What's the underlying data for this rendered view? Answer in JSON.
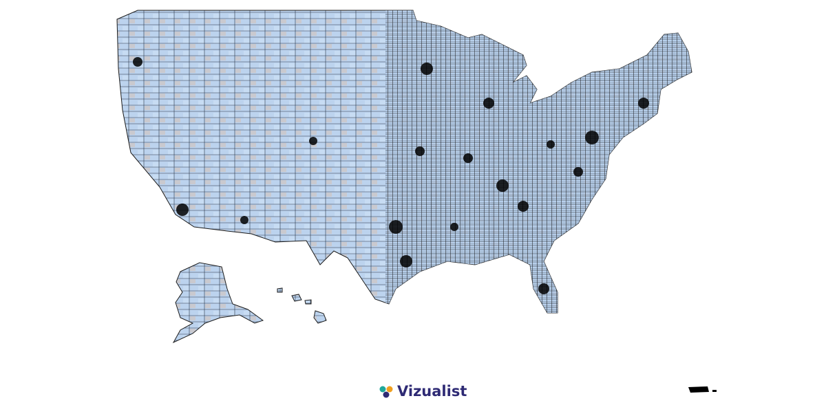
{
  "brand": {
    "name": "Vizualist"
  }
}
